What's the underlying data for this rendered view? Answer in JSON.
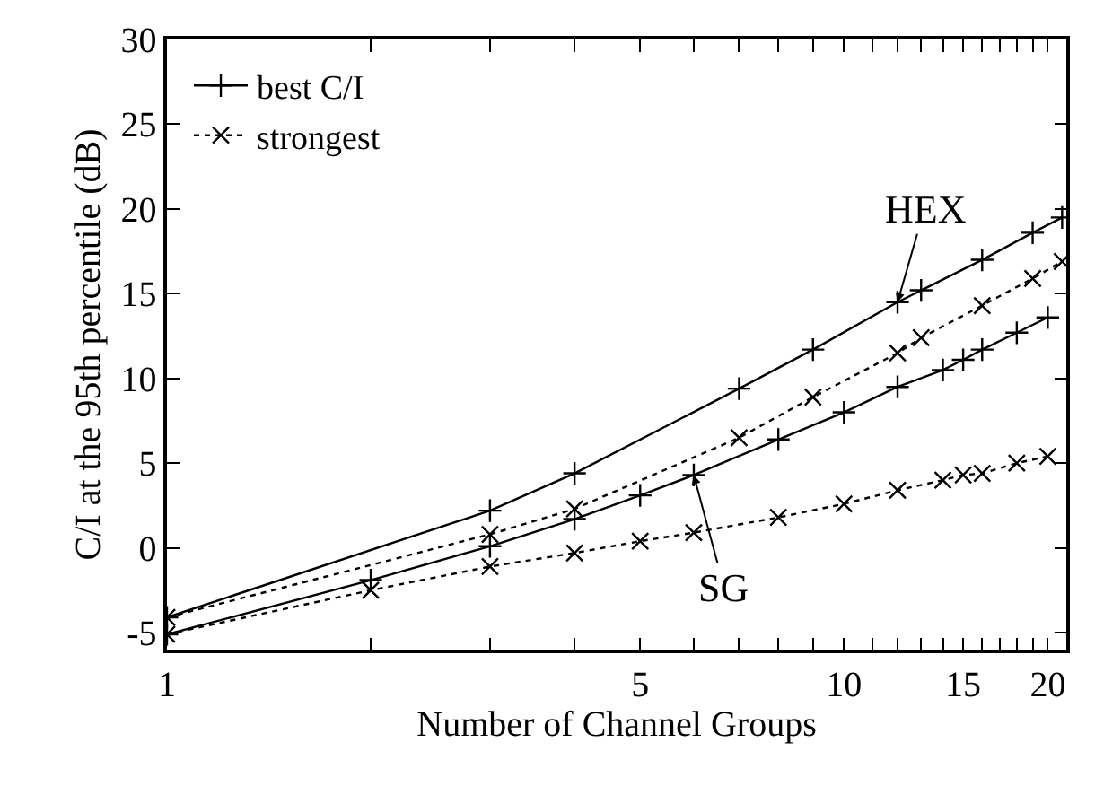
{
  "chart_data": {
    "type": "line",
    "xlabel": "Number of Channel Groups",
    "ylabel": "C/I at the 95th percentile (dB)",
    "log": "x",
    "legend": "top left",
    "xlim": [
      1,
      21.3
    ],
    "xticks": [
      1,
      {
        "value": 2,
        "label": null
      },
      {
        "value": 3,
        "label": null
      },
      {
        "value": 4,
        "label": null
      },
      5,
      {
        "value": 6,
        "label": null
      },
      {
        "value": 7,
        "label": null
      },
      {
        "value": 8,
        "label": null
      },
      {
        "value": 9,
        "label": null
      },
      10,
      {
        "value": 11,
        "label": null
      },
      {
        "value": 12,
        "label": null
      },
      {
        "value": 13,
        "label": null
      },
      {
        "value": 14,
        "label": null
      },
      15,
      {
        "value": 16,
        "label": null
      },
      {
        "value": 17,
        "label": null
      },
      {
        "value": 18,
        "label": null
      },
      {
        "value": 19,
        "label": null
      },
      20
    ],
    "ylim": [
      -6,
      30
    ],
    "yticks": [
      -5,
      0,
      5,
      10,
      15,
      20,
      25,
      30
    ],
    "series": [
      {
        "name": "best C/I",
        "color": "#000000",
        "line_style": "solid",
        "marker": "cross",
        "x": [
          1,
          3,
          4,
          7,
          9,
          12,
          13,
          16,
          19,
          21
        ],
        "values": [
          -4.1,
          2.2,
          4.4,
          9.4,
          11.7,
          14.5,
          15.2,
          17.0,
          18.6,
          19.5
        ]
      },
      {
        "name": "strongest",
        "color": "#000000",
        "line_style": "dotted",
        "marker": "x",
        "x": [
          1,
          3,
          4,
          7,
          9,
          12,
          13,
          16,
          19,
          21
        ],
        "values": [
          -4.1,
          0.8,
          2.3,
          6.5,
          8.9,
          11.5,
          12.4,
          14.3,
          15.9,
          16.9
        ]
      },
      {
        "color": "#000000",
        "line_style": "solid",
        "marker": "cross",
        "x": [
          1,
          2,
          3,
          4,
          5,
          6,
          8,
          10,
          12,
          14,
          15,
          16,
          18,
          20
        ],
        "values": [
          -5.1,
          -1.9,
          0.1,
          1.7,
          3.1,
          4.3,
          6.4,
          8.0,
          9.5,
          10.5,
          11.1,
          11.7,
          12.7,
          13.6
        ]
      },
      {
        "color": "#000000",
        "line_style": "dotted",
        "marker": "x",
        "x": [
          1,
          2,
          3,
          4,
          5,
          6,
          8,
          10,
          12,
          14,
          15,
          16,
          18,
          20
        ],
        "values": [
          -5.1,
          -2.5,
          -1.1,
          -0.3,
          0.4,
          0.9,
          1.8,
          2.6,
          3.4,
          4.0,
          4.3,
          4.4,
          5.0,
          5.4
        ]
      }
    ],
    "annotations": [
      {
        "text": "HEX",
        "x": 12,
        "y": 14.5
      },
      {
        "text": "SG",
        "x": 6,
        "y": 4.3
      }
    ]
  }
}
